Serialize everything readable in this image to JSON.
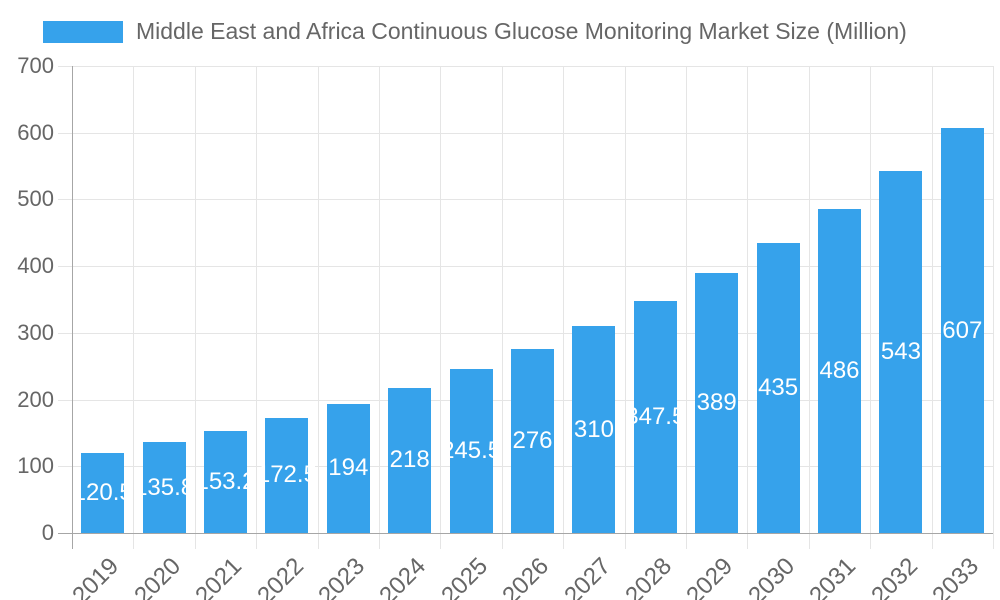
{
  "legend": {
    "label": "Middle East and Africa Continuous Glucose Monitoring Market Size (Million)"
  },
  "chart_data": {
    "type": "bar",
    "title": "Middle East and Africa Continuous Glucose Monitoring Market Size (Million)",
    "categories": [
      "2019",
      "2020",
      "2021",
      "2022",
      "2023",
      "2024",
      "2025",
      "2026",
      "2027",
      "2028",
      "2029",
      "2030",
      "2031",
      "2032",
      "2033"
    ],
    "values": [
      120.5,
      135.8,
      153.2,
      172.5,
      194,
      218,
      245.5,
      276,
      310,
      347.5,
      389,
      435,
      486,
      543,
      607
    ],
    "xlabel": "",
    "ylabel": "",
    "ylim": [
      0,
      700
    ],
    "y_ticks": [
      0,
      100,
      200,
      300,
      400,
      500,
      600,
      700
    ],
    "grid": true,
    "legend_position": "top-left",
    "value_label_position": "center-of-bar",
    "x_tick_rotation": -45,
    "colors": {
      "bar": "#36A2EB",
      "value_label": "#FFFFFF",
      "axis_text": "#666666",
      "gridline": "#E5E5E5",
      "axis_line": "#A6A6A6",
      "background": "#FFFFFF"
    }
  }
}
